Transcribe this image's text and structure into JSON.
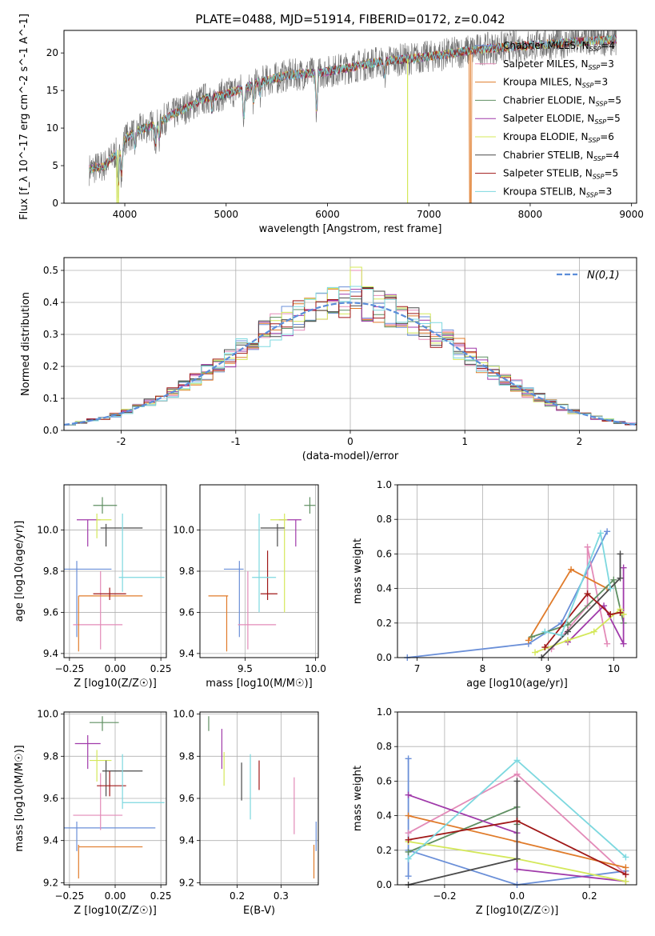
{
  "title": "PLATE=0488, MJD=51914, FIBERID=0172, z=0.042",
  "colors": {
    "Chabrier MILES": "#6a8fd8",
    "Salpeter MILES": "#e38bb8",
    "Kroupa MILES": "#e07b2a",
    "Chabrier ELODIE": "#5f8f62",
    "Salpeter ELODIE": "#a03aaa",
    "Kroupa ELODIE": "#d4e85a",
    "Chabrier STELIB": "#4a4a4a",
    "Salpeter STELIB": "#a01818",
    "Kroupa STELIB": "#7dd8df",
    "gaussian": "#5b8dd9"
  },
  "chart_data": [
    {
      "id": "spectrum",
      "type": "line",
      "title": "PLATE=0488, MJD=51914, FIBERID=0172, z=0.042",
      "xlabel": "wavelength [Angstrom, rest frame]",
      "ylabel": "Flux [f_λ 10^-17 erg cm^-2 s^-1 A^-1]",
      "xlim": [
        3400,
        9050
      ],
      "ylim": [
        0,
        23
      ],
      "xticks": [
        4000,
        5000,
        6000,
        7000,
        8000,
        9000
      ],
      "yticks": [
        0,
        5,
        10,
        15,
        20
      ],
      "grid": false,
      "legend_position": "top-right",
      "legend": [
        {
          "name": "Chabrier MILES",
          "nssp": "4"
        },
        {
          "name": "Salpeter MILES",
          "nssp": "3"
        },
        {
          "name": "Kroupa MILES",
          "nssp": "3"
        },
        {
          "name": "Chabrier ELODIE",
          "nssp": "5"
        },
        {
          "name": "Salpeter ELODIE",
          "nssp": "5"
        },
        {
          "name": "Kroupa ELODIE",
          "nssp": "6"
        },
        {
          "name": "Chabrier STELIB",
          "nssp": "4"
        },
        {
          "name": "Salpeter STELIB",
          "nssp": "5"
        },
        {
          "name": "Kroupa STELIB",
          "nssp": "3"
        }
      ],
      "continuum_x": [
        3650,
        3800,
        3900,
        4000,
        4100,
        4300,
        4500,
        4800,
        5000,
        5300,
        5600,
        6000,
        6500,
        7000,
        7500,
        8000,
        8500,
        8800
      ],
      "continuum_y": [
        4.5,
        5.0,
        6.5,
        8.5,
        9.5,
        10.5,
        12.0,
        14.0,
        14.5,
        16.0,
        17.0,
        17.5,
        18.8,
        19.5,
        20.5,
        21.0,
        21.5,
        21.8
      ],
      "absorption_lines": [
        [
          3934,
          5
        ],
        [
          3969,
          4
        ],
        [
          4102,
          2
        ],
        [
          4304,
          2.5
        ],
        [
          4340,
          2
        ],
        [
          4861,
          2
        ],
        [
          5175,
          4
        ],
        [
          5270,
          2.5
        ],
        [
          5335,
          1.5
        ],
        [
          5892,
          5
        ],
        [
          6563,
          2
        ]
      ],
      "model_dropouts": [
        {
          "series": "Kroupa ELODIE",
          "x": 3930
        },
        {
          "series": "Kroupa ELODIE",
          "x": 6790
        },
        {
          "series": "Kroupa MILES",
          "x": 7410
        }
      ]
    },
    {
      "id": "residuals",
      "type": "histogram",
      "xlabel": "(data-model)/error",
      "ylabel": "Normed distribution",
      "xlim": [
        -2.5,
        2.5
      ],
      "ylim": [
        0,
        0.54
      ],
      "xticks": [
        -2,
        -1,
        0,
        1,
        2
      ],
      "yticks": [
        0,
        0.1,
        0.2,
        0.3,
        0.4,
        0.5
      ],
      "bin_width": 0.1,
      "grid": true,
      "legend_position": "top-right",
      "gaussian_label": "N(0,1)",
      "hist_peaks": {
        "Kroupa ELODIE": 0.51,
        "Salpeter MILES": 0.5,
        "Kroupa STELIB": 0.45
      }
    },
    {
      "id": "age_vs_Z",
      "type": "errorbar",
      "xlabel": "Z [log10(Z/Z☉)]",
      "ylabel": "age [log10(age/yr)]",
      "xlim": [
        -0.28,
        0.28
      ],
      "ylim": [
        9.38,
        10.22
      ],
      "xticks": [
        -0.25,
        0.0,
        0.25
      ],
      "xtick_labels": [
        "−0.25",
        "0.00",
        "0.25"
      ],
      "yticks": [
        9.4,
        9.6,
        9.8,
        10.0
      ],
      "grid": true,
      "points": [
        {
          "series": "Chabrier MILES",
          "x": -0.21,
          "xlo": -0.3,
          "xhi": -0.02,
          "y": 9.81,
          "ylo": 9.48,
          "yhi": 9.85
        },
        {
          "series": "Salpeter MILES",
          "x": -0.08,
          "xlo": -0.23,
          "xhi": 0.04,
          "y": 9.54,
          "ylo": 9.42,
          "yhi": 9.8
        },
        {
          "series": "Kroupa MILES",
          "x": -0.2,
          "xlo": -0.2,
          "xhi": 0.15,
          "y": 9.68,
          "ylo": 9.41,
          "yhi": 9.68
        },
        {
          "series": "Chabrier ELODIE",
          "x": -0.07,
          "xlo": -0.12,
          "xhi": 0.01,
          "y": 10.12,
          "ylo": 10.08,
          "yhi": 10.16
        },
        {
          "series": "Salpeter ELODIE",
          "x": -0.15,
          "xlo": -0.21,
          "xhi": -0.08,
          "y": 10.05,
          "ylo": 9.92,
          "yhi": 10.05
        },
        {
          "series": "Kroupa ELODIE",
          "x": -0.1,
          "xlo": -0.1,
          "xhi": -0.02,
          "y": 10.05,
          "ylo": 9.96,
          "yhi": 10.08
        },
        {
          "series": "Chabrier STELIB",
          "x": -0.05,
          "xlo": -0.08,
          "xhi": 0.15,
          "y": 10.01,
          "ylo": 9.92,
          "yhi": 10.03
        },
        {
          "series": "Salpeter STELIB",
          "x": -0.03,
          "xlo": -0.12,
          "xhi": 0.06,
          "y": 9.69,
          "ylo": 9.66,
          "yhi": 9.72
        },
        {
          "series": "Kroupa STELIB",
          "x": 0.04,
          "xlo": 0.02,
          "xhi": 0.27,
          "y": 9.77,
          "ylo": 9.7,
          "yhi": 10.08
        }
      ]
    },
    {
      "id": "age_vs_mass",
      "type": "errorbar",
      "xlabel": "mass [log10(M/M☉)]",
      "xlim": [
        9.18,
        10.02
      ],
      "ylim": [
        9.38,
        10.22
      ],
      "xticks": [
        9.5,
        10.0
      ],
      "xtick_labels": [
        "9.5",
        "10.0"
      ],
      "yticks": [
        9.4,
        9.6,
        9.8,
        10.0
      ],
      "grid": true,
      "points": [
        {
          "series": "Chabrier MILES",
          "x": 9.46,
          "xlo": 9.35,
          "xhi": 9.49,
          "y": 9.81,
          "ylo": 9.48,
          "yhi": 9.85
        },
        {
          "series": "Salpeter MILES",
          "x": 9.52,
          "xlo": 9.45,
          "xhi": 9.72,
          "y": 9.54,
          "ylo": 9.42,
          "yhi": 9.8
        },
        {
          "series": "Kroupa MILES",
          "x": 9.37,
          "xlo": 9.24,
          "xhi": 9.38,
          "y": 9.68,
          "ylo": 9.41,
          "yhi": 9.68
        },
        {
          "series": "Chabrier ELODIE",
          "x": 9.96,
          "xlo": 9.92,
          "xhi": 10.0,
          "y": 10.12,
          "ylo": 10.08,
          "yhi": 10.16
        },
        {
          "series": "Salpeter ELODIE",
          "x": 9.86,
          "xlo": 9.74,
          "xhi": 9.9,
          "y": 10.05,
          "ylo": 9.92,
          "yhi": 10.05
        },
        {
          "series": "Kroupa ELODIE",
          "x": 9.78,
          "xlo": 9.68,
          "xhi": 9.8,
          "y": 10.05,
          "ylo": 9.6,
          "yhi": 10.08
        },
        {
          "series": "Chabrier STELIB",
          "x": 9.73,
          "xlo": 9.61,
          "xhi": 9.78,
          "y": 10.01,
          "ylo": 9.92,
          "yhi": 10.03
        },
        {
          "series": "Salpeter STELIB",
          "x": 9.66,
          "xlo": 9.61,
          "xhi": 9.73,
          "y": 9.69,
          "ylo": 9.66,
          "yhi": 9.9
        },
        {
          "series": "Kroupa STELIB",
          "x": 9.6,
          "xlo": 9.55,
          "xhi": 9.72,
          "y": 9.77,
          "ylo": 9.6,
          "yhi": 10.08
        }
      ]
    },
    {
      "id": "weight_vs_age",
      "type": "line",
      "xlabel": "age [log10(age/yr)]",
      "ylabel": "mass weight",
      "xlim": [
        6.7,
        10.35
      ],
      "ylim": [
        0,
        1.0
      ],
      "xticks": [
        7,
        8,
        9,
        10
      ],
      "yticks": [
        0.0,
        0.2,
        0.4,
        0.6,
        0.8,
        1.0
      ],
      "grid": true,
      "series": [
        {
          "name": "Chabrier MILES",
          "x": [
            6.85,
            8.7,
            9.2,
            9.9
          ],
          "y": [
            0.0,
            0.08,
            0.2,
            0.73
          ]
        },
        {
          "name": "Salpeter MILES",
          "x": [
            9.05,
            9.6,
            9.6,
            9.9
          ],
          "y": [
            0.05,
            0.3,
            0.64,
            0.08
          ]
        },
        {
          "name": "Kroupa MILES",
          "x": [
            8.7,
            9.35,
            9.9
          ],
          "y": [
            0.1,
            0.51,
            0.4
          ]
        },
        {
          "name": "Chabrier ELODIE",
          "x": [
            8.75,
            9.3,
            10.0,
            10.15
          ],
          "y": [
            0.12,
            0.19,
            0.45,
            0.2
          ]
        },
        {
          "name": "Salpeter ELODIE",
          "x": [
            9.3,
            9.85,
            10.15,
            10.15
          ],
          "y": [
            0.09,
            0.3,
            0.08,
            0.52
          ]
        },
        {
          "name": "Kroupa ELODIE",
          "x": [
            8.8,
            9.3,
            9.7,
            10.1,
            10.15
          ],
          "y": [
            0.03,
            0.1,
            0.15,
            0.28,
            0.25
          ]
        },
        {
          "name": "Chabrier STELIB",
          "x": [
            8.9,
            9.3,
            10.1,
            10.1
          ],
          "y": [
            0.0,
            0.15,
            0.46,
            0.6
          ]
        },
        {
          "name": "Salpeter STELIB",
          "x": [
            8.95,
            9.6,
            9.95,
            10.1
          ],
          "y": [
            0.06,
            0.37,
            0.25,
            0.26
          ]
        },
        {
          "name": "Kroupa STELIB",
          "x": [
            8.95,
            9.2,
            9.8,
            9.95
          ],
          "y": [
            0.15,
            0.13,
            0.72,
            0.4
          ]
        }
      ]
    },
    {
      "id": "mass_vs_Z",
      "type": "errorbar",
      "xlabel": "Z [log10(Z/Z☉)]",
      "ylabel": "mass [log10(M/M☉)]",
      "xlim": [
        -0.28,
        0.28
      ],
      "ylim": [
        9.19,
        10.01
      ],
      "xticks": [
        -0.25,
        0.0,
        0.25
      ],
      "xtick_labels": [
        "−0.25",
        "0.00",
        "0.25"
      ],
      "yticks": [
        9.2,
        9.4,
        9.6,
        9.8,
        10.0
      ],
      "grid": true,
      "points": [
        {
          "series": "Chabrier MILES",
          "x": -0.21,
          "xlo": -0.3,
          "xhi": 0.22,
          "y": 9.46,
          "ylo": 9.35,
          "yhi": 9.49
        },
        {
          "series": "Salpeter MILES",
          "x": -0.08,
          "xlo": -0.23,
          "xhi": 0.04,
          "y": 9.52,
          "ylo": 9.45,
          "yhi": 9.72
        },
        {
          "series": "Kroupa MILES",
          "x": -0.2,
          "xlo": -0.2,
          "xhi": 0.15,
          "y": 9.37,
          "ylo": 9.22,
          "yhi": 9.38
        },
        {
          "series": "Chabrier ELODIE",
          "x": -0.07,
          "xlo": -0.14,
          "xhi": 0.02,
          "y": 9.96,
          "ylo": 9.92,
          "yhi": 9.99
        },
        {
          "series": "Salpeter ELODIE",
          "x": -0.15,
          "xlo": -0.22,
          "xhi": -0.08,
          "y": 9.86,
          "ylo": 9.74,
          "yhi": 9.9
        },
        {
          "series": "Kroupa ELODIE",
          "x": -0.1,
          "xlo": -0.14,
          "xhi": -0.02,
          "y": 9.78,
          "ylo": 9.68,
          "yhi": 9.83
        },
        {
          "series": "Chabrier STELIB",
          "x": -0.05,
          "xlo": -0.07,
          "xhi": 0.15,
          "y": 9.73,
          "ylo": 9.61,
          "yhi": 9.78
        },
        {
          "series": "Salpeter STELIB",
          "x": -0.03,
          "xlo": -0.1,
          "xhi": 0.06,
          "y": 9.66,
          "ylo": 9.61,
          "yhi": 9.73
        },
        {
          "series": "Kroupa STELIB",
          "x": 0.04,
          "xlo": 0.04,
          "xhi": 0.27,
          "y": 9.58,
          "ylo": 9.55,
          "yhi": 9.81
        }
      ]
    },
    {
      "id": "mass_vs_EBV",
      "type": "errorbar",
      "xlabel": "E(B-V)",
      "xlim": [
        0.115,
        0.385
      ],
      "ylim": [
        9.19,
        10.01
      ],
      "xticks": [
        0.2,
        0.3
      ],
      "xtick_labels": [
        "0.2",
        "0.3"
      ],
      "yticks": [
        9.2,
        9.4,
        9.6,
        9.8,
        10.0
      ],
      "grid": true,
      "points": [
        {
          "series": "Chabrier ELODIE",
          "x": 0.135,
          "y": 9.96,
          "ylo": 9.92,
          "yhi": 9.99
        },
        {
          "series": "Salpeter ELODIE",
          "x": 0.165,
          "y": 9.86,
          "ylo": 9.74,
          "yhi": 9.93
        },
        {
          "series": "Kroupa ELODIE",
          "x": 0.17,
          "y": 9.78,
          "ylo": 9.66,
          "yhi": 9.82
        },
        {
          "series": "Chabrier STELIB",
          "x": 0.21,
          "y": 9.73,
          "ylo": 9.59,
          "yhi": 9.77
        },
        {
          "series": "Kroupa STELIB",
          "x": 0.23,
          "y": 9.58,
          "ylo": 9.5,
          "yhi": 9.81
        },
        {
          "series": "Salpeter STELIB",
          "x": 0.25,
          "y": 9.66,
          "ylo": 9.64,
          "yhi": 9.78
        },
        {
          "series": "Salpeter MILES",
          "x": 0.33,
          "y": 9.52,
          "ylo": 9.43,
          "yhi": 9.7
        },
        {
          "series": "Kroupa MILES",
          "x": 0.375,
          "y": 9.37,
          "ylo": 9.22,
          "yhi": 9.38
        },
        {
          "series": "Chabrier MILES",
          "x": 0.38,
          "y": 9.46,
          "ylo": 9.35,
          "yhi": 9.49
        }
      ]
    },
    {
      "id": "weight_vs_Z",
      "type": "line",
      "xlabel": "Z [log10(Z/Z☉)]",
      "ylabel": "mass weight",
      "xlim": [
        -0.33,
        0.33
      ],
      "ylim": [
        0,
        1.0
      ],
      "xticks": [
        -0.2,
        0.0,
        0.2
      ],
      "xtick_labels": [
        "−0.2",
        "0.0",
        "0.2"
      ],
      "yticks": [
        0.0,
        0.2,
        0.4,
        0.6,
        0.8,
        1.0
      ],
      "grid": true,
      "series": [
        {
          "name": "Chabrier MILES",
          "x": [
            -0.3,
            0.0,
            0.3
          ],
          "y": [
            0.2,
            0.0,
            0.08
          ]
        },
        {
          "name": "Chabrier MILES",
          "x": [
            -0.3,
            -0.3
          ],
          "y": [
            0.73,
            0.05
          ]
        },
        {
          "name": "Salpeter MILES",
          "x": [
            -0.3,
            0.0,
            0.3
          ],
          "y": [
            0.3,
            0.64,
            0.06
          ]
        },
        {
          "name": "Kroupa MILES",
          "x": [
            -0.3,
            0.0,
            0.3
          ],
          "y": [
            0.4,
            0.25,
            0.1
          ]
        },
        {
          "name": "Chabrier ELODIE",
          "x": [
            -0.3,
            0.0,
            0.0
          ],
          "y": [
            0.19,
            0.45,
            0.35
          ]
        },
        {
          "name": "Salpeter ELODIE",
          "x": [
            -0.3,
            0.0,
            0.0,
            0.3
          ],
          "y": [
            0.52,
            0.3,
            0.09,
            0.02
          ]
        },
        {
          "name": "Kroupa ELODIE",
          "x": [
            -0.3,
            0.0,
            0.3
          ],
          "y": [
            0.25,
            0.15,
            0.02
          ]
        },
        {
          "name": "Chabrier STELIB",
          "x": [
            -0.3,
            0.0,
            0.0
          ],
          "y": [
            0.0,
            0.15,
            0.6
          ]
        },
        {
          "name": "Salpeter STELIB",
          "x": [
            -0.3,
            0.0,
            0.3
          ],
          "y": [
            0.26,
            0.37,
            0.06
          ]
        },
        {
          "name": "Kroupa STELIB",
          "x": [
            -0.3,
            0.0,
            0.3
          ],
          "y": [
            0.15,
            0.72,
            0.16
          ]
        }
      ]
    }
  ]
}
